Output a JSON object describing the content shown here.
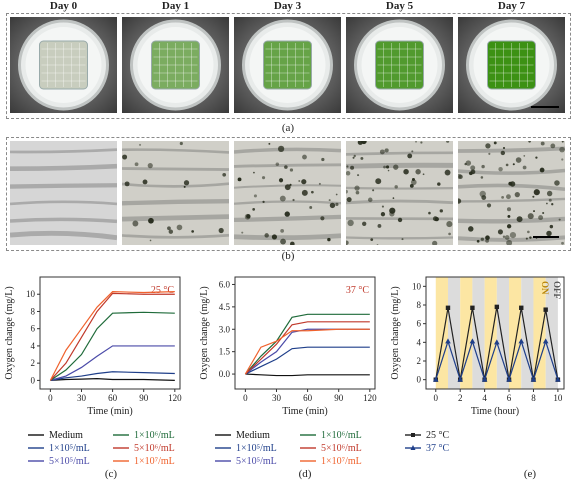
{
  "panel_a": {
    "days": [
      "Day 0",
      "Day 1",
      "Day 3",
      "Day 5",
      "Day 7"
    ],
    "greenness": [
      0.0,
      0.55,
      0.7,
      0.85,
      1.0
    ],
    "caption": "(a)"
  },
  "panel_b": {
    "caption": "(b)",
    "cell_density": [
      0.0,
      0.25,
      0.55,
      0.8,
      1.0
    ]
  },
  "chart_data": [
    {
      "type": "line",
      "panel": "(c)",
      "annotation": "25 °C",
      "xlabel": "Time (min)",
      "ylabel": "Oxygen change (mg/L)",
      "xlim": [
        -10,
        125
      ],
      "ylim": [
        -1,
        12
      ],
      "xticks": [
        "0",
        "30",
        "60",
        "90",
        "120"
      ],
      "yticks": [
        "0",
        "2",
        "4",
        "6",
        "8",
        "10"
      ],
      "x": [
        0,
        15,
        30,
        45,
        60,
        90,
        120
      ],
      "series": [
        {
          "name": "Medium",
          "color": "#111111",
          "values": [
            0,
            0.1,
            0.15,
            0.2,
            0.1,
            0.1,
            0.0
          ]
        },
        {
          "name": "1×10⁵/mL",
          "color": "#1f3f8a",
          "values": [
            0,
            0.3,
            0.5,
            0.8,
            1.0,
            0.9,
            0.8
          ]
        },
        {
          "name": "5×10⁵/mL",
          "color": "#4a4aa8",
          "values": [
            0,
            0.5,
            1.5,
            2.8,
            4.0,
            4.0,
            4.0
          ]
        },
        {
          "name": "1×10⁶/mL",
          "color": "#1f6b3a",
          "values": [
            0,
            1.2,
            3.0,
            6.0,
            7.8,
            7.9,
            7.8
          ]
        },
        {
          "name": "5×10⁶/mL",
          "color": "#c0392b",
          "values": [
            0,
            2.0,
            5.0,
            8.0,
            10.1,
            10.0,
            10.0
          ]
        },
        {
          "name": "1×10⁷/mL",
          "color": "#f0622d",
          "values": [
            0,
            3.5,
            6.0,
            8.5,
            10.3,
            10.2,
            10.3
          ]
        }
      ]
    },
    {
      "type": "line",
      "panel": "(d)",
      "annotation": "37 °C",
      "xlabel": "Time (min)",
      "ylabel": "Oxygen change (mg/L)",
      "xlim": [
        -10,
        125
      ],
      "ylim": [
        -1,
        6.5
      ],
      "xticks": [
        "0",
        "30",
        "60",
        "90",
        "120"
      ],
      "yticks": [
        "0.0",
        "1.5",
        "3.0",
        "4.5",
        "6.0"
      ],
      "x": [
        0,
        15,
        30,
        45,
        60,
        90,
        120
      ],
      "series": [
        {
          "name": "Medium",
          "color": "#111111",
          "values": [
            0,
            -0.05,
            -0.1,
            -0.1,
            -0.05,
            -0.05,
            -0.05
          ]
        },
        {
          "name": "1×10⁵/mL",
          "color": "#1f3f8a",
          "values": [
            0,
            0.5,
            1.0,
            1.7,
            1.8,
            1.8,
            1.8
          ]
        },
        {
          "name": "5×10⁵/mL",
          "color": "#4a4aa8",
          "values": [
            0,
            0.8,
            1.5,
            2.8,
            3.0,
            3.0,
            3.0
          ]
        },
        {
          "name": "1×10⁶/mL",
          "color": "#1f6b3a",
          "values": [
            0,
            1.2,
            2.2,
            3.8,
            4.0,
            4.0,
            4.0
          ]
        },
        {
          "name": "5×10⁶/mL",
          "color": "#c0392b",
          "values": [
            0,
            1.0,
            2.0,
            3.3,
            3.5,
            3.5,
            3.5
          ]
        },
        {
          "name": "1×10⁷/mL",
          "color": "#f0622d",
          "values": [
            0,
            1.8,
            2.2,
            2.9,
            2.9,
            3.0,
            3.0
          ]
        }
      ]
    },
    {
      "type": "line",
      "panel": "(e)",
      "xlabel": "Time (hour)",
      "ylabel": "Oxygen change (mg/L)",
      "xlim": [
        -0.8,
        10.5
      ],
      "ylim": [
        -1,
        11
      ],
      "xticks": [
        "0",
        "2",
        "4",
        "6",
        "8",
        "10"
      ],
      "yticks": [
        "0",
        "2",
        "4",
        "6",
        "8",
        "10"
      ],
      "on_label": "ON",
      "off_label": "OFF",
      "light_on_color": "#fce6a3",
      "light_off_color": "#dcdcdc",
      "x": [
        0,
        1,
        2,
        3,
        4,
        5,
        6,
        7,
        8,
        9,
        10
      ],
      "series": [
        {
          "name": "25 °C",
          "color": "#222222",
          "marker": "square",
          "values": [
            0,
            7.7,
            0,
            7.7,
            0,
            7.8,
            0,
            7.7,
            0,
            7.5,
            0
          ]
        },
        {
          "name": "37 °C",
          "color": "#1f3f8a",
          "marker": "triangle",
          "values": [
            0,
            4.1,
            0,
            4.1,
            0,
            4.0,
            0,
            4.1,
            0,
            4.1,
            0
          ]
        }
      ]
    }
  ],
  "captions": {
    "c": "(c)",
    "d": "(d)",
    "e": "(e)"
  }
}
